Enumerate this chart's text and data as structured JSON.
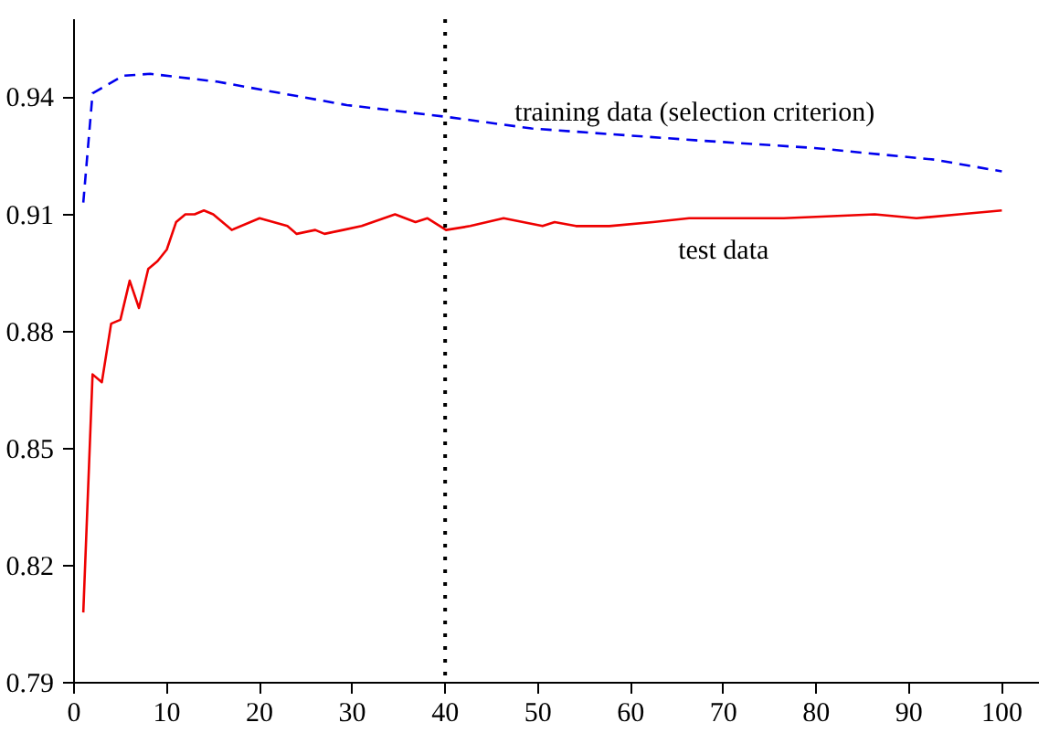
{
  "chart_data": {
    "type": "line",
    "xlim": [
      0,
      104
    ],
    "ylim": [
      0.79,
      0.96
    ],
    "xticks": [
      0,
      10,
      20,
      30,
      40,
      50,
      60,
      70,
      80,
      90,
      100
    ],
    "yticks": [
      {
        "value": 0.79,
        "label": "0.79"
      },
      {
        "value": 0.82,
        "label": "0.82"
      },
      {
        "value": 0.85,
        "label": "0.85"
      },
      {
        "value": 0.88,
        "label": "0.88"
      },
      {
        "value": 0.91,
        "label": "0.91"
      },
      {
        "value": 0.94,
        "label": "0.94"
      }
    ],
    "ref_lines": [
      {
        "axis": "x",
        "value": 40,
        "color": "#000000",
        "line_style": "dotted"
      }
    ],
    "series": [
      {
        "name": "training data (selection criterion)",
        "color": "#0000ee",
        "line_style": "dashed",
        "x": [
          1,
          2,
          5.3,
          8.2,
          15.4,
          29.4,
          40.1,
          49.3,
          66.9,
          79.8,
          92.8,
          100
        ],
        "values": [
          0.913,
          0.941,
          0.9455,
          0.946,
          0.944,
          0.938,
          0.935,
          0.932,
          0.929,
          0.927,
          0.924,
          0.921
        ]
      },
      {
        "name": "test data",
        "color": "#ee0000",
        "line_style": "solid",
        "x": [
          1,
          2,
          3,
          4,
          5,
          6,
          7,
          8,
          9,
          10,
          11,
          12,
          13,
          14,
          15,
          17,
          20,
          23,
          24,
          26,
          27,
          29,
          31,
          34.6,
          36.8,
          38.1,
          40.1,
          42.7,
          46.3,
          50.5,
          51.8,
          54.1,
          57.7,
          62.4,
          66.3,
          70,
          76.5,
          86.3,
          90.8,
          95.4,
          100
        ],
        "values": [
          0.808,
          0.869,
          0.867,
          0.882,
          0.883,
          0.893,
          0.886,
          0.896,
          0.898,
          0.901,
          0.908,
          0.91,
          0.91,
          0.911,
          0.91,
          0.906,
          0.909,
          0.907,
          0.905,
          0.906,
          0.905,
          0.906,
          0.907,
          0.91,
          0.908,
          0.909,
          0.906,
          0.907,
          0.909,
          0.907,
          0.908,
          0.907,
          0.907,
          0.908,
          0.909,
          0.909,
          0.909,
          0.91,
          0.909,
          0.91,
          0.911
        ]
      }
    ]
  }
}
